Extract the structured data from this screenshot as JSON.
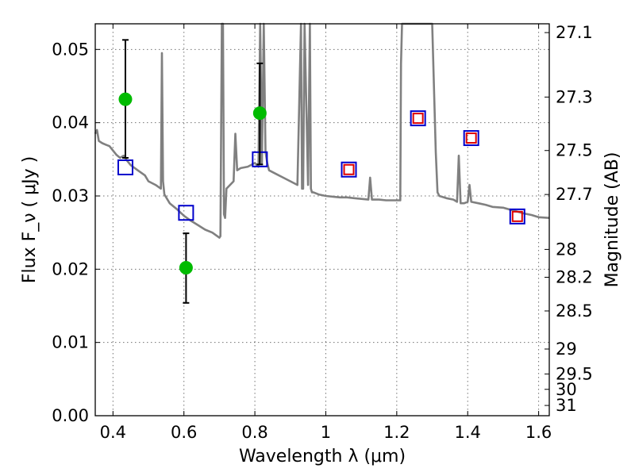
{
  "chart_data": {
    "type": "scatter",
    "xlabel": "Wavelength  λ (μm)",
    "ylabel_left": "Flux  F_ν  ( μJy )",
    "ylabel_right": "Magnitude (AB)",
    "xlim": [
      0.35,
      1.63
    ],
    "ylim": [
      0.0,
      0.0535
    ],
    "xticks": [
      0.4,
      0.6,
      0.8,
      1.0,
      1.2,
      1.4,
      1.6
    ],
    "xtick_labels": [
      "0.4",
      "0.6",
      "0.8",
      "1",
      "1.2",
      "1.4",
      "1.6"
    ],
    "yticks": [
      0.0,
      0.01,
      0.02,
      0.03,
      0.04,
      0.05
    ],
    "ytick_labels": [
      "0.00",
      "0.01",
      "0.02",
      "0.03",
      "0.04",
      "0.05"
    ],
    "right_ticks": [
      {
        "label": "27.1",
        "flux": 0.0523
      },
      {
        "label": "27.3",
        "flux": 0.0435
      },
      {
        "label": "27.5",
        "flux": 0.0362
      },
      {
        "label": "27.7",
        "flux": 0.0302
      },
      {
        "label": "28",
        "flux": 0.0227
      },
      {
        "label": "28.2",
        "flux": 0.0189
      },
      {
        "label": "28.5",
        "flux": 0.0143
      },
      {
        "label": "29",
        "flux": 0.0091
      },
      {
        "label": "29.5",
        "flux": 0.0057
      },
      {
        "label": "30",
        "flux": 0.0036
      },
      {
        "label": "31",
        "flux": 0.0014
      }
    ],
    "grid": true,
    "series": [
      {
        "kind": "observed_flux",
        "color": "#00bb00",
        "marker": "circle",
        "points": [
          {
            "x": 0.435,
            "y": 0.0432,
            "yerr_low": 0.0352,
            "yerr_high": 0.0513
          },
          {
            "x": 0.606,
            "y": 0.0202,
            "yerr_low": 0.0154,
            "yerr_high": 0.0249
          },
          {
            "x": 0.814,
            "y": 0.0413,
            "yerr_low": 0.0343,
            "yerr_high": 0.0481
          }
        ]
      },
      {
        "kind": "model_band_flux",
        "color": "#0000cc",
        "marker": "square",
        "points": [
          {
            "x": 0.435,
            "y": 0.0339
          },
          {
            "x": 0.606,
            "y": 0.0277
          },
          {
            "x": 0.814,
            "y": 0.035
          },
          {
            "x": 1.065,
            "y": 0.0336
          },
          {
            "x": 1.26,
            "y": 0.0406
          },
          {
            "x": 1.41,
            "y": 0.0379
          },
          {
            "x": 1.54,
            "y": 0.0272
          }
        ]
      },
      {
        "kind": "model_band_flux_inner",
        "color": "#dd0000",
        "marker": "square",
        "points": [
          {
            "x": 1.065,
            "y": 0.0336
          },
          {
            "x": 1.26,
            "y": 0.0406
          },
          {
            "x": 1.41,
            "y": 0.0379
          },
          {
            "x": 1.54,
            "y": 0.0272
          }
        ]
      },
      {
        "kind": "model_spectrum",
        "color": "#808080",
        "marker": "line",
        "x": [
          0.35,
          0.355,
          0.36,
          0.37,
          0.38,
          0.39,
          0.4,
          0.41,
          0.42,
          0.43,
          0.44,
          0.45,
          0.47,
          0.49,
          0.5,
          0.52,
          0.535,
          0.538,
          0.541,
          0.545,
          0.56,
          0.58,
          0.6,
          0.62,
          0.64,
          0.66,
          0.68,
          0.7,
          0.703,
          0.707,
          0.71,
          0.713,
          0.716,
          0.72,
          0.74,
          0.745,
          0.75,
          0.76,
          0.78,
          0.8,
          0.81,
          0.815,
          0.82,
          0.825,
          0.83,
          0.835,
          0.84,
          0.86,
          0.88,
          0.9,
          0.92,
          0.93,
          0.933,
          0.936,
          0.94,
          0.95,
          0.955,
          0.958,
          0.961,
          0.965,
          0.98,
          1.0,
          1.02,
          1.04,
          1.06,
          1.08,
          1.1,
          1.12,
          1.125,
          1.13,
          1.15,
          1.17,
          1.2,
          1.21,
          1.212,
          1.215,
          1.22,
          1.24,
          1.26,
          1.28,
          1.3,
          1.31,
          1.315,
          1.32,
          1.34,
          1.36,
          1.37,
          1.375,
          1.38,
          1.39,
          1.4,
          1.405,
          1.41,
          1.43,
          1.45,
          1.47,
          1.5,
          1.53,
          1.56,
          1.58,
          1.6,
          1.63
        ],
        "y": [
          0.0385,
          0.039,
          0.0375,
          0.0372,
          0.037,
          0.0368,
          0.0362,
          0.0356,
          0.0352,
          0.0355,
          0.0348,
          0.0342,
          0.0335,
          0.0328,
          0.032,
          0.0315,
          0.031,
          0.0495,
          0.032,
          0.0302,
          0.029,
          0.0282,
          0.0273,
          0.0266,
          0.026,
          0.0254,
          0.025,
          0.0243,
          0.0245,
          0.0535,
          0.0535,
          0.0275,
          0.027,
          0.031,
          0.032,
          0.0385,
          0.0335,
          0.0338,
          0.034,
          0.0345,
          0.034,
          0.0535,
          0.0345,
          0.0535,
          0.036,
          0.0345,
          0.0335,
          0.033,
          0.0325,
          0.032,
          0.0315,
          0.0535,
          0.031,
          0.031,
          0.0535,
          0.0315,
          0.0535,
          0.031,
          0.0305,
          0.0305,
          0.0302,
          0.03,
          0.0299,
          0.0298,
          0.0298,
          0.0297,
          0.0296,
          0.0295,
          0.0325,
          0.0295,
          0.0295,
          0.0294,
          0.0294,
          0.0294,
          0.048,
          0.0535,
          0.0535,
          0.0535,
          0.0535,
          0.0535,
          0.0535,
          0.036,
          0.0305,
          0.03,
          0.0297,
          0.0295,
          0.0292,
          0.0355,
          0.029,
          0.029,
          0.0292,
          0.0315,
          0.0292,
          0.029,
          0.0288,
          0.0285,
          0.0284,
          0.028,
          0.0276,
          0.0274,
          0.0271,
          0.027
        ]
      }
    ]
  }
}
